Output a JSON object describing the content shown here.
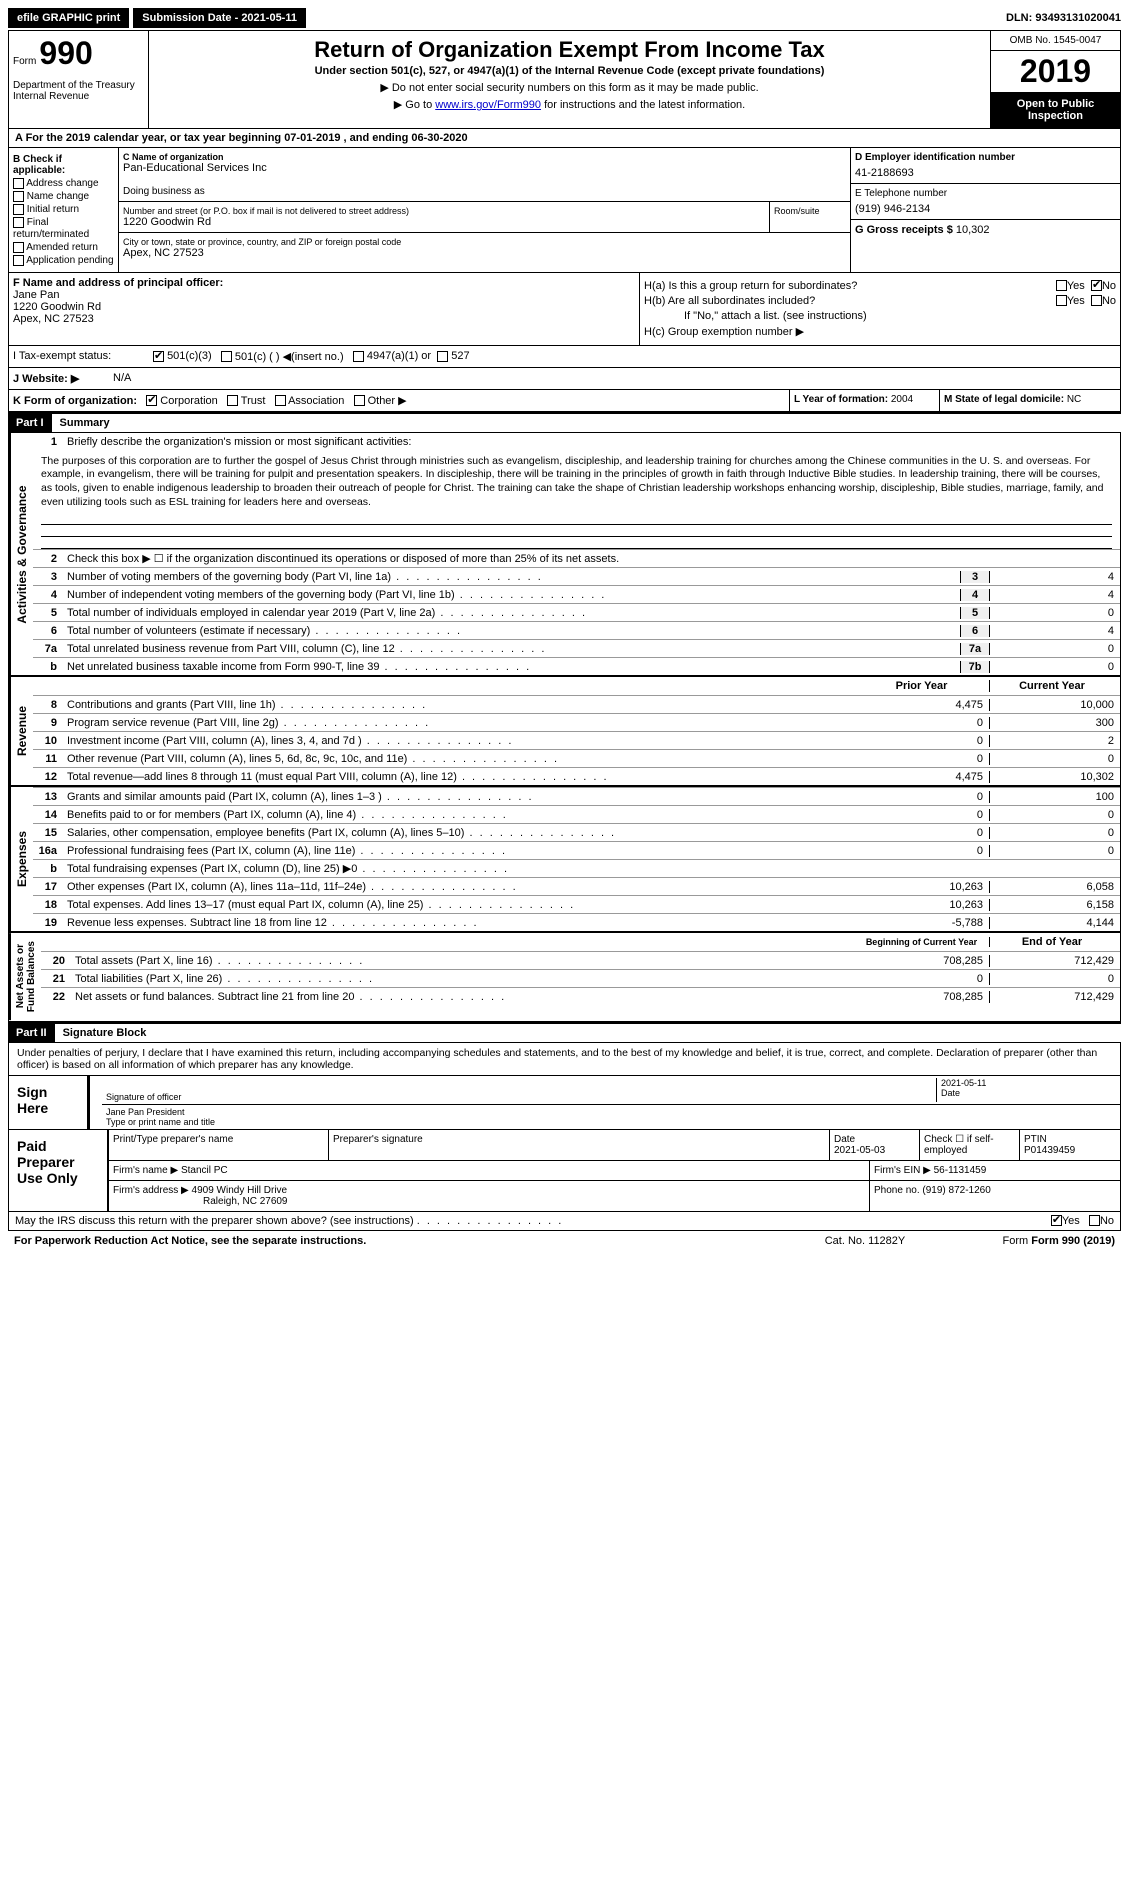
{
  "topbar": {
    "efile": "efile GRAPHIC print",
    "submission_label": "Submission Date - 2021-05-11",
    "dln": "DLN: 93493131020041"
  },
  "header": {
    "form_label": "Form",
    "form_num": "990",
    "dept": "Department of the Treasury\nInternal Revenue",
    "title": "Return of Organization Exempt From Income Tax",
    "subtitle": "Under section 501(c), 527, or 4947(a)(1) of the Internal Revenue Code (except private foundations)",
    "note1": "▶ Do not enter social security numbers on this form as it may be made public.",
    "note2_pre": "▶ Go to ",
    "note2_link": "www.irs.gov/Form990",
    "note2_post": " for instructions and the latest information.",
    "omb": "OMB No. 1545-0047",
    "year": "2019",
    "inspect": "Open to Public Inspection"
  },
  "row_a": "A For the 2019 calendar year, or tax year beginning 07-01-2019   , and ending 06-30-2020",
  "box_b": {
    "title": "B Check if applicable:",
    "items": [
      "Address change",
      "Name change",
      "Initial return",
      "Final return/terminated",
      "Amended return",
      "Application pending"
    ]
  },
  "box_c": {
    "label": "C Name of organization",
    "name": "Pan-Educational Services Inc",
    "dba_label": "Doing business as",
    "addr_label": "Number and street (or P.O. box if mail is not delivered to street address)",
    "addr": "1220 Goodwin Rd",
    "room_label": "Room/suite",
    "city_label": "City or town, state or province, country, and ZIP or foreign postal code",
    "city": "Apex, NC  27523"
  },
  "box_d": {
    "label": "D Employer identification number",
    "value": "41-2188693"
  },
  "box_e": {
    "label": "E Telephone number",
    "value": "(919) 946-2134"
  },
  "box_g": {
    "label": "G Gross receipts $",
    "value": "10,302"
  },
  "box_f": {
    "label": "F  Name and address of principal officer:",
    "name": "Jane Pan",
    "addr": "1220 Goodwin Rd",
    "city": "Apex, NC  27523"
  },
  "box_h": {
    "ha": "H(a)  Is this a group return for subordinates?",
    "hb": "H(b)  Are all subordinates included?",
    "hb_note": "If \"No,\" attach a list. (see instructions)",
    "hc": "H(c)  Group exemption number ▶",
    "yes": "Yes",
    "no": "No"
  },
  "row_i": {
    "label": "I   Tax-exempt status:",
    "opt1": "501(c)(3)",
    "opt2": "501(c) (  ) ◀(insert no.)",
    "opt3": "4947(a)(1) or",
    "opt4": "527"
  },
  "row_j": {
    "label": "J   Website: ▶",
    "value": "N/A"
  },
  "row_k": {
    "label": "K Form of organization:",
    "opts": [
      "Corporation",
      "Trust",
      "Association",
      "Other ▶"
    ]
  },
  "row_l": {
    "label": "L Year of formation:",
    "value": "2004"
  },
  "row_m": {
    "label": "M State of legal domicile:",
    "value": "NC"
  },
  "part1": {
    "header": "Part I",
    "title": "Summary",
    "vlabel_ag": "Activities & Governance",
    "vlabel_rev": "Revenue",
    "vlabel_exp": "Expenses",
    "vlabel_na": "Net Assets or\nFund Balances",
    "l1_label": "Briefly describe the organization's mission or most significant activities:",
    "l1_text": "The purposes of this corporation are to further the gospel of Jesus Christ through ministries such as evangelism, discipleship, and leadership training for churches among the Chinese communities in the U. S. and overseas. For example, in evangelism, there will be training for pulpit and presentation speakers. In discipleship, there will be training in the principles of growth in faith through Inductive Bible studies. In leadership training, there will be courses, as tools, given to enable indigenous leadership to broaden their outreach of people for Christ. The training can take the shape of Christian leadership workshops enhancing worship, discipleship, Bible studies, marriage, family, and even utilizing tools such as ESL training for leaders here and overseas.",
    "l2": "Check this box ▶ ☐ if the organization discontinued its operations or disposed of more than 25% of its net assets.",
    "lines_single": [
      {
        "n": "3",
        "t": "Number of voting members of the governing body (Part VI, line 1a)",
        "c": "3",
        "v": "4"
      },
      {
        "n": "4",
        "t": "Number of independent voting members of the governing body (Part VI, line 1b)",
        "c": "4",
        "v": "4"
      },
      {
        "n": "5",
        "t": "Total number of individuals employed in calendar year 2019 (Part V, line 2a)",
        "c": "5",
        "v": "0"
      },
      {
        "n": "6",
        "t": "Total number of volunteers (estimate if necessary)",
        "c": "6",
        "v": "4"
      },
      {
        "n": "7a",
        "t": "Total unrelated business revenue from Part VIII, column (C), line 12",
        "c": "7a",
        "v": "0"
      },
      {
        "n": "b",
        "t": "Net unrelated business taxable income from Form 990-T, line 39",
        "c": "7b",
        "v": "0"
      }
    ],
    "col_prior": "Prior Year",
    "col_current": "Current Year",
    "revenue": [
      {
        "n": "8",
        "t": "Contributions and grants (Part VIII, line 1h)",
        "p": "4,475",
        "c": "10,000"
      },
      {
        "n": "9",
        "t": "Program service revenue (Part VIII, line 2g)",
        "p": "0",
        "c": "300"
      },
      {
        "n": "10",
        "t": "Investment income (Part VIII, column (A), lines 3, 4, and 7d )",
        "p": "0",
        "c": "2"
      },
      {
        "n": "11",
        "t": "Other revenue (Part VIII, column (A), lines 5, 6d, 8c, 9c, 10c, and 11e)",
        "p": "0",
        "c": "0"
      },
      {
        "n": "12",
        "t": "Total revenue—add lines 8 through 11 (must equal Part VIII, column (A), line 12)",
        "p": "4,475",
        "c": "10,302"
      }
    ],
    "expenses": [
      {
        "n": "13",
        "t": "Grants and similar amounts paid (Part IX, column (A), lines 1–3 )",
        "p": "0",
        "c": "100"
      },
      {
        "n": "14",
        "t": "Benefits paid to or for members (Part IX, column (A), line 4)",
        "p": "0",
        "c": "0"
      },
      {
        "n": "15",
        "t": "Salaries, other compensation, employee benefits (Part IX, column (A), lines 5–10)",
        "p": "0",
        "c": "0"
      },
      {
        "n": "16a",
        "t": "Professional fundraising fees (Part IX, column (A), line 11e)",
        "p": "0",
        "c": "0"
      },
      {
        "n": "b",
        "t": "Total fundraising expenses (Part IX, column (D), line 25) ▶0",
        "p": "",
        "c": "",
        "gray": true
      },
      {
        "n": "17",
        "t": "Other expenses (Part IX, column (A), lines 11a–11d, 11f–24e)",
        "p": "10,263",
        "c": "6,058"
      },
      {
        "n": "18",
        "t": "Total expenses. Add lines 13–17 (must equal Part IX, column (A), line 25)",
        "p": "10,263",
        "c": "6,158"
      },
      {
        "n": "19",
        "t": "Revenue less expenses. Subtract line 18 from line 12",
        "p": "-5,788",
        "c": "4,144"
      }
    ],
    "col_begin": "Beginning of Current Year",
    "col_end": "End of Year",
    "netassets": [
      {
        "n": "20",
        "t": "Total assets (Part X, line 16)",
        "p": "708,285",
        "c": "712,429"
      },
      {
        "n": "21",
        "t": "Total liabilities (Part X, line 26)",
        "p": "0",
        "c": "0"
      },
      {
        "n": "22",
        "t": "Net assets or fund balances. Subtract line 21 from line 20",
        "p": "708,285",
        "c": "712,429"
      }
    ]
  },
  "part2": {
    "header": "Part II",
    "title": "Signature Block",
    "declaration": "Under penalties of perjury, I declare that I have examined this return, including accompanying schedules and statements, and to the best of my knowledge and belief, it is true, correct, and complete. Declaration of preparer (other than officer) is based on all information of which preparer has any knowledge.",
    "sign_here": "Sign Here",
    "sig_officer": "Signature of officer",
    "sig_date": "2021-05-11",
    "date_label": "Date",
    "sig_name": "Jane Pan President",
    "sig_name_label": "Type or print name and title",
    "paid_prep": "Paid Preparer Use Only",
    "prep_name_label": "Print/Type preparer's name",
    "prep_sig_label": "Preparer's signature",
    "prep_date_label": "Date",
    "prep_date": "2021-05-03",
    "prep_check": "Check ☐ if self-employed",
    "ptin_label": "PTIN",
    "ptin": "P01439459",
    "firm_name_label": "Firm's name   ▶",
    "firm_name": "Stancil PC",
    "firm_ein_label": "Firm's EIN ▶",
    "firm_ein": "56-1131459",
    "firm_addr_label": "Firm's address ▶",
    "firm_addr": "4909 Windy Hill Drive",
    "firm_city": "Raleigh, NC  27609",
    "phone_label": "Phone no.",
    "phone": "(919) 872-1260",
    "discuss": "May the IRS discuss this return with the preparer shown above? (see instructions)",
    "yes": "Yes",
    "no": "No"
  },
  "footer": {
    "pra": "For Paperwork Reduction Act Notice, see the separate instructions.",
    "cat": "Cat. No. 11282Y",
    "form": "Form 990 (2019)"
  }
}
